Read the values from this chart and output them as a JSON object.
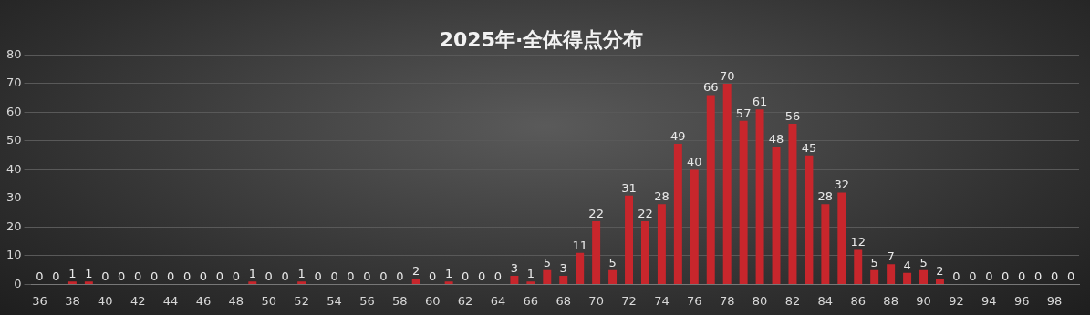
{
  "chart_data": {
    "type": "bar",
    "title": "2025年·全体得点分布",
    "categories": [
      "36",
      null,
      "38",
      null,
      "40",
      null,
      "42",
      null,
      "44",
      null,
      "46",
      null,
      "48",
      null,
      "50",
      null,
      "52",
      null,
      "54",
      null,
      "56",
      null,
      "58",
      null,
      "60",
      null,
      "62",
      null,
      "64",
      null,
      "66",
      null,
      "68",
      null,
      "70",
      null,
      "72",
      null,
      "74",
      null,
      "76",
      null,
      "78",
      null,
      "80",
      null,
      "82",
      null,
      "84",
      null,
      "86",
      null,
      "88",
      null,
      "90",
      null,
      "92",
      null,
      "94",
      null,
      "96",
      null,
      "98",
      null
    ],
    "values": [
      0,
      0,
      1,
      1,
      0,
      0,
      0,
      0,
      0,
      0,
      0,
      0,
      0,
      1,
      0,
      0,
      1,
      0,
      0,
      0,
      0,
      0,
      0,
      2,
      0,
      1,
      0,
      0,
      0,
      3,
      1,
      5,
      3,
      11,
      22,
      5,
      31,
      22,
      28,
      49,
      40,
      66,
      70,
      57,
      61,
      48,
      56,
      45,
      28,
      32,
      12,
      5,
      7,
      4,
      5,
      2,
      0,
      0,
      0,
      0,
      0,
      0,
      0,
      0
    ],
    "color": "#c8262c",
    "ylim": [
      0,
      80
    ],
    "yticks": [
      0,
      10,
      20,
      30,
      40,
      50,
      60,
      70,
      80
    ],
    "grid": "y",
    "data_labels": true
  }
}
